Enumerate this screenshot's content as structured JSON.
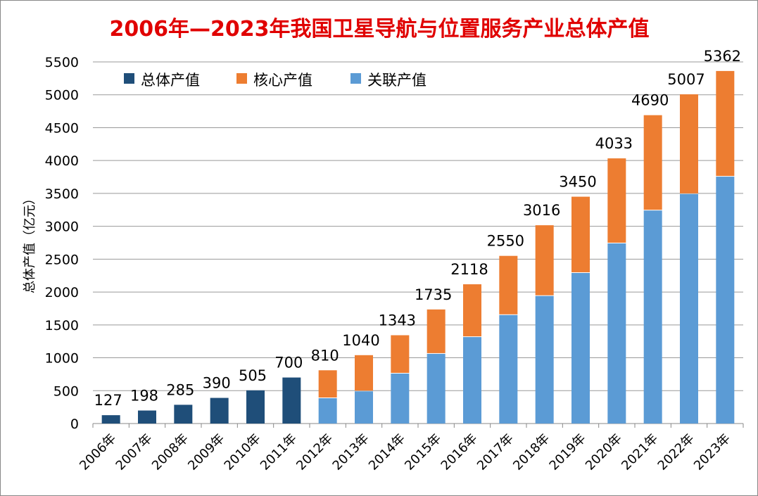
{
  "chart_data": {
    "type": "bar",
    "stacked": true,
    "title": "2006年—2023年我国卫星导航与位置服务产业总体产值",
    "xlabel": "",
    "ylabel": "总体产值（亿元）",
    "ylim": [
      0,
      5500
    ],
    "yticks": [
      0,
      500,
      1000,
      1500,
      2000,
      2500,
      3000,
      3500,
      4000,
      4500,
      5000,
      5500
    ],
    "grid": true,
    "legend_position": "top-left",
    "categories": [
      "2006年",
      "2007年",
      "2008年",
      "2009年",
      "2010年",
      "2011年",
      "2012年",
      "2013年",
      "2014年",
      "2015年",
      "2016年",
      "2017年",
      "2018年",
      "2019年",
      "2020年",
      "2021年",
      "2022年",
      "2023年"
    ],
    "totals": [
      127,
      198,
      285,
      390,
      505,
      700,
      810,
      1040,
      1343,
      1735,
      2118,
      2550,
      3016,
      3450,
      4033,
      4690,
      5007,
      5362
    ],
    "series": [
      {
        "name": "总体产值",
        "color": "#1f4e79",
        "values": [
          127,
          198,
          285,
          390,
          505,
          700,
          null,
          null,
          null,
          null,
          null,
          null,
          null,
          null,
          null,
          null,
          null,
          null
        ]
      },
      {
        "name": "关联产值",
        "color": "#5b9bd5",
        "values": [
          null,
          null,
          null,
          null,
          null,
          null,
          385,
          490,
          760,
          1060,
          1315,
          1650,
          1940,
          2290,
          2740,
          3240,
          3490,
          3755
        ]
      },
      {
        "name": "核心产值",
        "color": "#ed7d31",
        "values": [
          null,
          null,
          null,
          null,
          null,
          null,
          425,
          550,
          583,
          675,
          803,
          900,
          1076,
          1160,
          1293,
          1450,
          1517,
          1607
        ]
      }
    ],
    "legend": [
      "总体产值",
      "核心产值",
      "关联产值"
    ],
    "title_color": "#e00000"
  }
}
